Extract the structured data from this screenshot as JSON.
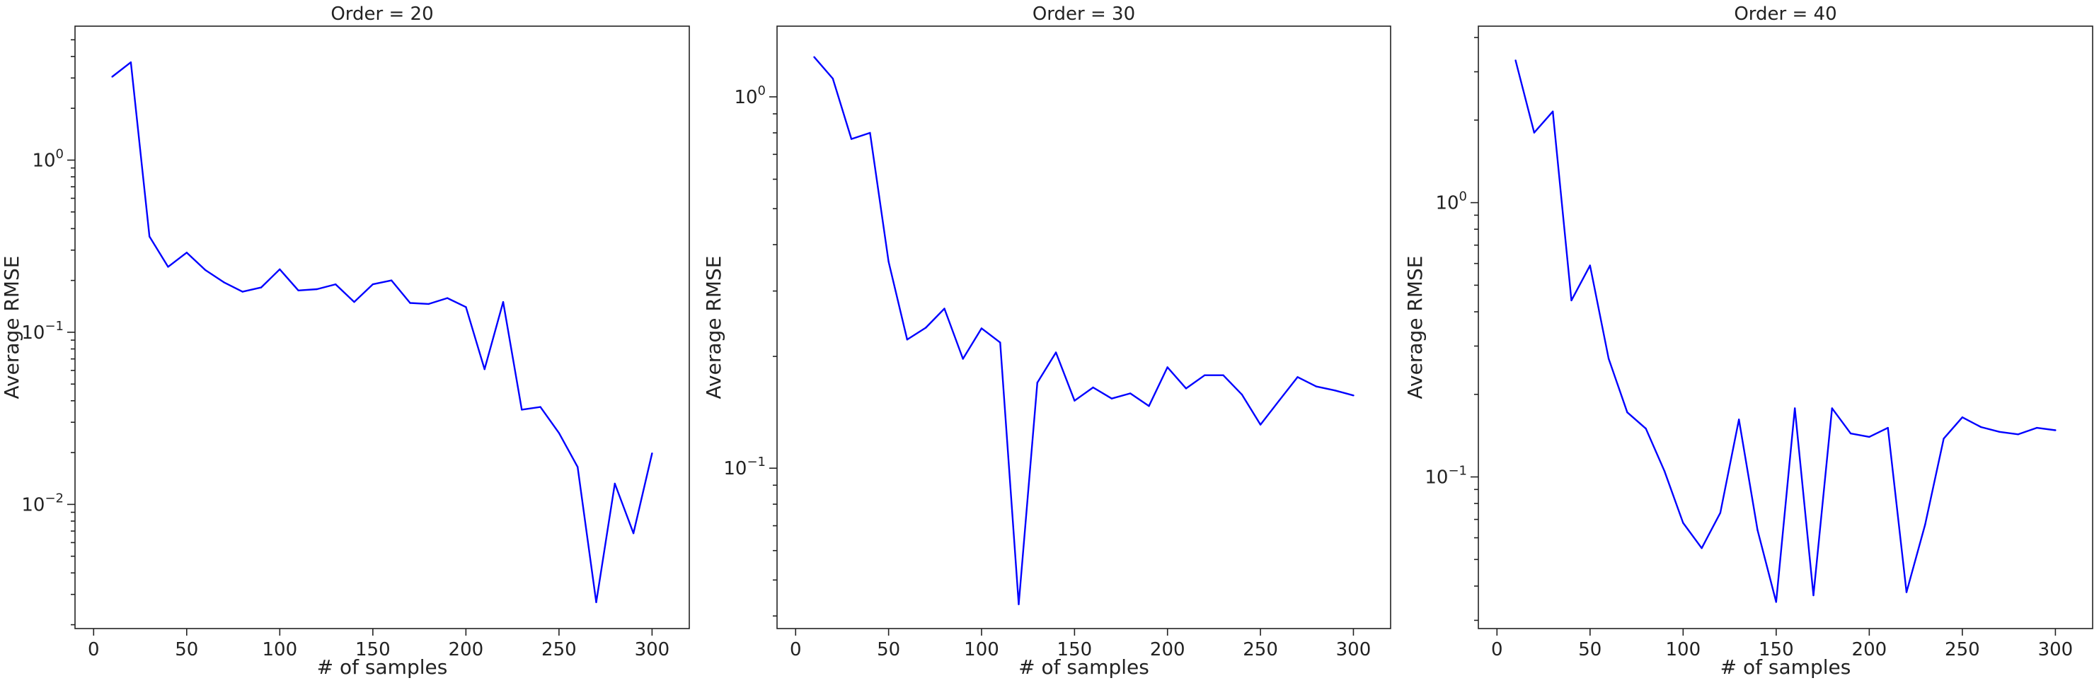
{
  "chart_data": [
    {
      "type": "line",
      "title": "Order = 20",
      "xlabel": "# of samples",
      "ylabel": "Average RMSE",
      "yscale": "log",
      "xlim": [
        -10,
        320
      ],
      "ylim": [
        0.0019,
        6.0
      ],
      "xticks": [
        0,
        50,
        100,
        150,
        200,
        250,
        300
      ],
      "yticks": [
        {
          "base": "10",
          "exp": "−2",
          "value": 0.01
        },
        {
          "base": "10",
          "exp": "−1",
          "value": 0.1
        },
        {
          "base": "10",
          "exp": "0",
          "value": 1
        }
      ],
      "grid": false,
      "color": "#0000ff",
      "x": [
        10,
        20,
        30,
        40,
        50,
        60,
        70,
        80,
        90,
        100,
        110,
        120,
        130,
        140,
        150,
        160,
        170,
        180,
        190,
        200,
        210,
        220,
        230,
        240,
        250,
        260,
        270,
        280,
        290,
        300
      ],
      "y": [
        3.05,
        3.7,
        0.36,
        0.24,
        0.29,
        0.23,
        0.195,
        0.172,
        0.182,
        0.232,
        0.175,
        0.178,
        0.19,
        0.15,
        0.19,
        0.2,
        0.148,
        0.146,
        0.158,
        0.14,
        0.061,
        0.15,
        0.0355,
        0.0368,
        0.026,
        0.0165,
        0.0027,
        0.0132,
        0.0068,
        0.0198
      ]
    },
    {
      "type": "line",
      "title": "Order = 30",
      "xlabel": "# of samples",
      "ylabel": "Average RMSE",
      "yscale": "log",
      "xlim": [
        -10,
        320
      ],
      "ylim": [
        0.037,
        1.55
      ],
      "xticks": [
        0,
        50,
        100,
        150,
        200,
        250,
        300
      ],
      "yticks": [
        {
          "base": "10",
          "exp": "−1",
          "value": 0.1
        },
        {
          "base": "10",
          "exp": "0",
          "value": 1
        }
      ],
      "grid": false,
      "color": "#0000ff",
      "x": [
        10,
        20,
        30,
        40,
        50,
        60,
        70,
        80,
        90,
        100,
        110,
        120,
        130,
        140,
        150,
        160,
        170,
        180,
        190,
        200,
        210,
        220,
        230,
        240,
        250,
        260,
        270,
        280,
        290,
        300
      ],
      "y": [
        1.28,
        1.12,
        0.77,
        0.8,
        0.36,
        0.222,
        0.239,
        0.269,
        0.197,
        0.238,
        0.218,
        0.043,
        0.17,
        0.205,
        0.152,
        0.165,
        0.154,
        0.159,
        0.147,
        0.187,
        0.164,
        0.178,
        0.178,
        0.158,
        0.131,
        0.152,
        0.176,
        0.166,
        0.162,
        0.157
      ]
    },
    {
      "type": "line",
      "title": "Order = 40",
      "xlabel": "# of samples",
      "ylabel": "Average RMSE",
      "yscale": "log",
      "xlim": [
        -10,
        320
      ],
      "ylim": [
        0.028,
        4.4
      ],
      "xticks": [
        0,
        50,
        100,
        150,
        200,
        250,
        300
      ],
      "yticks": [
        {
          "base": "10",
          "exp": "−1",
          "value": 0.1
        },
        {
          "base": "10",
          "exp": "0",
          "value": 1
        }
      ],
      "grid": false,
      "color": "#0000ff",
      "x": [
        10,
        20,
        30,
        40,
        50,
        60,
        70,
        80,
        90,
        100,
        110,
        120,
        130,
        140,
        150,
        160,
        170,
        180,
        190,
        200,
        210,
        220,
        230,
        240,
        250,
        260,
        270,
        280,
        290,
        300
      ],
      "y": [
        3.3,
        1.8,
        2.15,
        0.44,
        0.59,
        0.27,
        0.172,
        0.15,
        0.105,
        0.068,
        0.055,
        0.074,
        0.162,
        0.064,
        0.035,
        0.178,
        0.037,
        0.178,
        0.144,
        0.14,
        0.151,
        0.038,
        0.067,
        0.138,
        0.165,
        0.152,
        0.146,
        0.143,
        0.151,
        0.148
      ]
    }
  ]
}
